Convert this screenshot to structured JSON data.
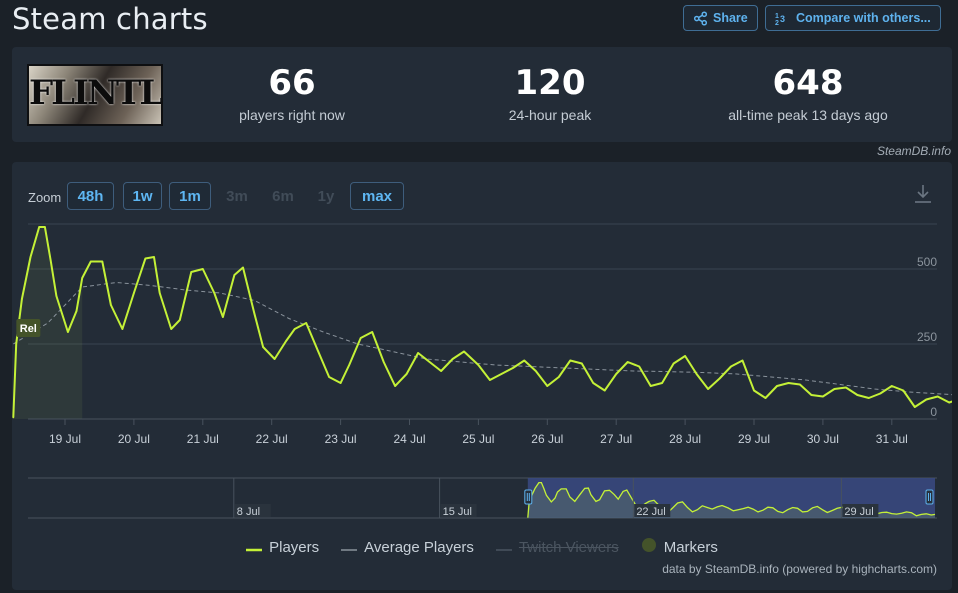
{
  "header": {
    "title": "Steam charts",
    "share_label": "Share",
    "compare_label": "Compare with others..."
  },
  "summary": {
    "game_logo_text": "FLINTLOCK",
    "current_value": "66",
    "current_label": "players right now",
    "peak24_value": "120",
    "peak24_label": "24-hour peak",
    "alltime_value": "648",
    "alltime_label": "all-time peak 13 days ago"
  },
  "credit": "SteamDB.info",
  "zoom": {
    "label": "Zoom",
    "options": [
      {
        "label": "48h",
        "enabled": true
      },
      {
        "label": "1w",
        "enabled": true
      },
      {
        "label": "1m",
        "enabled": true
      },
      {
        "label": "3m",
        "enabled": false
      },
      {
        "label": "6m",
        "enabled": false
      },
      {
        "label": "1y",
        "enabled": false
      },
      {
        "label": "max",
        "enabled": true
      }
    ]
  },
  "legend": {
    "players": "Players",
    "average": "Average Players",
    "twitch": "Twitch Viewers",
    "markers": "Markers"
  },
  "footer": "data by SteamDB.info (powered by highcharts.com)",
  "colors": {
    "players": "#c4f137",
    "average": "#8a939c",
    "marker": "#44532a",
    "accent": "#5eb2ee",
    "navigator_selection": "#3a4a82"
  },
  "chart_data": {
    "type": "line",
    "title": "",
    "xlabel": "",
    "ylabel": "",
    "ylim": [
      0,
      650
    ],
    "y_ticks": [
      0,
      250,
      500
    ],
    "x_ticks": [
      "19 Jul",
      "20 Jul",
      "21 Jul",
      "22 Jul",
      "23 Jul",
      "24 Jul",
      "25 Jul",
      "26 Jul",
      "27 Jul",
      "28 Jul",
      "29 Jul",
      "30 Jul",
      "31 Jul"
    ],
    "grid": true,
    "marker_label": "Rel",
    "series": [
      {
        "name": "Players",
        "x": [
          "18 Jul 06:00",
          "18 Jul 07:00",
          "18 Jul 09:00",
          "18 Jul 12:00",
          "18 Jul 15:00",
          "18 Jul 17:00",
          "18 Jul 19:00",
          "18 Jul 21:00",
          "19 Jul 01:00",
          "19 Jul 04:00",
          "19 Jul 06:00",
          "19 Jul 09:00",
          "19 Jul 13:00",
          "19 Jul 16:00",
          "19 Jul 20:00",
          "20 Jul 00:00",
          "20 Jul 04:00",
          "20 Jul 07:00",
          "20 Jul 09:00",
          "20 Jul 13:00",
          "20 Jul 16:00",
          "20 Jul 20:00",
          "21 Jul 00:00",
          "21 Jul 04:00",
          "21 Jul 07:00",
          "21 Jul 11:00",
          "21 Jul 14:00",
          "21 Jul 18:00",
          "21 Jul 21:00",
          "22 Jul 01:00",
          "22 Jul 05:00",
          "22 Jul 08:00",
          "22 Jul 12:00",
          "22 Jul 16:00",
          "22 Jul 20:00",
          "23 Jul 00:00",
          "23 Jul 03:00",
          "23 Jul 07:00",
          "23 Jul 11:00",
          "23 Jul 15:00",
          "23 Jul 19:00",
          "23 Jul 23:00",
          "24 Jul 03:00",
          "24 Jul 07:00",
          "24 Jul 11:00",
          "24 Jul 15:00",
          "24 Jul 19:00",
          "25 Jul 00:00",
          "25 Jul 04:00",
          "25 Jul 08:00",
          "25 Jul 12:00",
          "25 Jul 16:00",
          "25 Jul 20:00",
          "26 Jul 00:00",
          "26 Jul 04:00",
          "26 Jul 08:00",
          "26 Jul 12:00",
          "26 Jul 16:00",
          "26 Jul 20:00",
          "27 Jul 00:00",
          "27 Jul 04:00",
          "27 Jul 08:00",
          "27 Jul 12:00",
          "27 Jul 16:00",
          "27 Jul 20:00",
          "28 Jul 00:00",
          "28 Jul 04:00",
          "28 Jul 08:00",
          "28 Jul 12:00",
          "28 Jul 16:00",
          "28 Jul 20:00",
          "29 Jul 00:00",
          "29 Jul 04:00",
          "29 Jul 08:00",
          "29 Jul 12:00",
          "29 Jul 16:00",
          "29 Jul 20:00",
          "30 Jul 00:00",
          "30 Jul 04:00",
          "30 Jul 08:00",
          "30 Jul 12:00",
          "30 Jul 16:00",
          "30 Jul 20:00",
          "31 Jul 00:00",
          "31 Jul 04:00",
          "31 Jul 08:00",
          "31 Jul 12:00",
          "31 Jul 16:00",
          "31 Jul 20:00",
          "31 Jul 23:00"
        ],
        "values": [
          5,
          250,
          400,
          540,
          640,
          640,
          530,
          410,
          290,
          360,
          470,
          525,
          525,
          380,
          300,
          420,
          535,
          540,
          420,
          300,
          330,
          490,
          500,
          420,
          340,
          480,
          505,
          350,
          240,
          200,
          260,
          300,
          320,
          230,
          140,
          120,
          180,
          270,
          290,
          190,
          110,
          150,
          220,
          190,
          160,
          200,
          225,
          180,
          130,
          150,
          170,
          195,
          160,
          110,
          140,
          195,
          185,
          120,
          95,
          150,
          190,
          175,
          110,
          120,
          185,
          210,
          150,
          100,
          135,
          175,
          195,
          95,
          70,
          110,
          120,
          115,
          80,
          75,
          100,
          105,
          80,
          70,
          85,
          110,
          95,
          40,
          65,
          75,
          55,
          65
        ]
      },
      {
        "name": "Average Players",
        "x": [
          "18 Jul 06:00",
          "18 Jul 18:00",
          "19 Jul 06:00",
          "19 Jul 18:00",
          "20 Jul 06:00",
          "20 Jul 18:00",
          "21 Jul 06:00",
          "21 Jul 18:00",
          "22 Jul 06:00",
          "22 Jul 18:00",
          "23 Jul 06:00",
          "23 Jul 18:00",
          "24 Jul 06:00",
          "24 Jul 18:00",
          "25 Jul 06:00",
          "25 Jul 18:00",
          "26 Jul 06:00",
          "26 Jul 18:00",
          "27 Jul 06:00",
          "27 Jul 18:00",
          "28 Jul 06:00",
          "28 Jul 18:00",
          "29 Jul 06:00",
          "29 Jul 18:00",
          "30 Jul 06:00",
          "30 Jul 18:00",
          "31 Jul 06:00",
          "31 Jul 23:00"
        ],
        "values": [
          250,
          320,
          440,
          455,
          445,
          430,
          420,
          395,
          335,
          290,
          250,
          225,
          200,
          190,
          180,
          175,
          170,
          165,
          160,
          158,
          155,
          150,
          140,
          130,
          115,
          100,
          90,
          80
        ]
      }
    ],
    "navigator": {
      "x_ticks": [
        "8 Jul",
        "15 Jul",
        "22 Jul",
        "29 Jul"
      ],
      "selection": [
        "18 Jul",
        "31 Jul"
      ]
    }
  }
}
